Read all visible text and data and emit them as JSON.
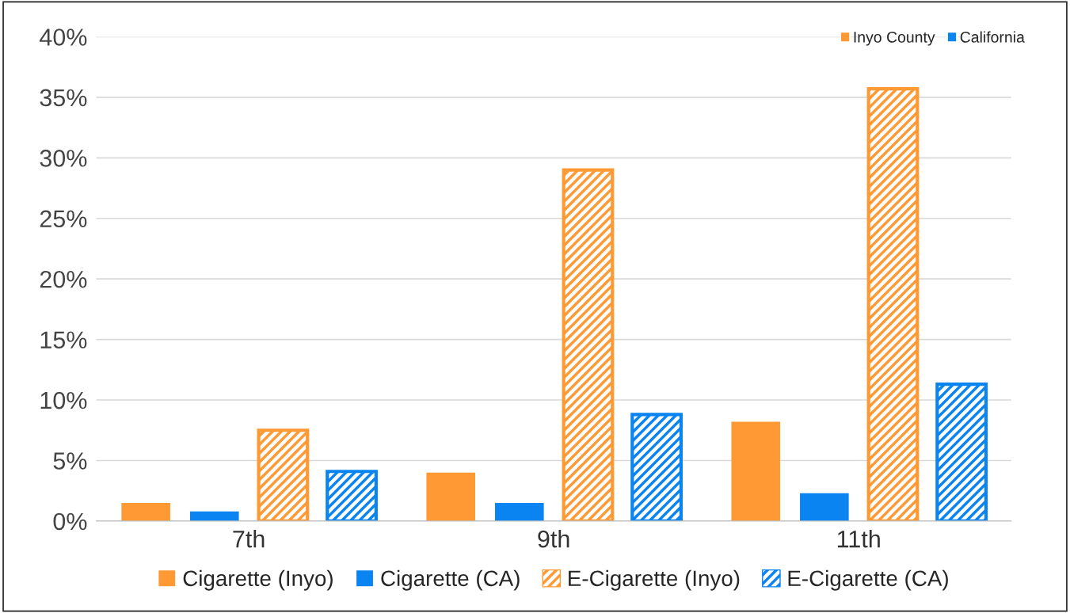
{
  "chart_data": {
    "type": "bar",
    "categories": [
      "7th",
      "9th",
      "11th"
    ],
    "series": [
      {
        "name": "Cigarette (Inyo)",
        "color": "#ff9933",
        "values": [
          1.5,
          4.0,
          8.2
        ]
      },
      {
        "name": "Cigarette (CA)",
        "color": "#0a84f0",
        "values": [
          0.8,
          1.5,
          2.3
        ]
      },
      {
        "name": "E-Cigarette (Inyo)",
        "color": "#ff9933",
        "values": [
          7.5,
          29.0,
          35.7
        ]
      },
      {
        "name": "E-Cigarette (CA)",
        "color": "#0a84f0",
        "values": [
          4.1,
          8.8,
          11.3
        ]
      }
    ],
    "annotations": [
      "Inyo County",
      "California"
    ],
    "ylim": [
      0,
      40
    ],
    "yticks": [
      {
        "value": 0,
        "label": "0%"
      },
      {
        "value": 5,
        "label": "5%"
      },
      {
        "value": 10,
        "label": "10%"
      },
      {
        "value": 15,
        "label": "15%"
      },
      {
        "value": 20,
        "label": "20%"
      },
      {
        "value": 25,
        "label": "25%"
      },
      {
        "value": 30,
        "label": "30%"
      },
      {
        "value": 35,
        "label": "35%"
      },
      {
        "value": 40,
        "label": "40%"
      }
    ],
    "grid": "y",
    "legend": "bottom"
  }
}
